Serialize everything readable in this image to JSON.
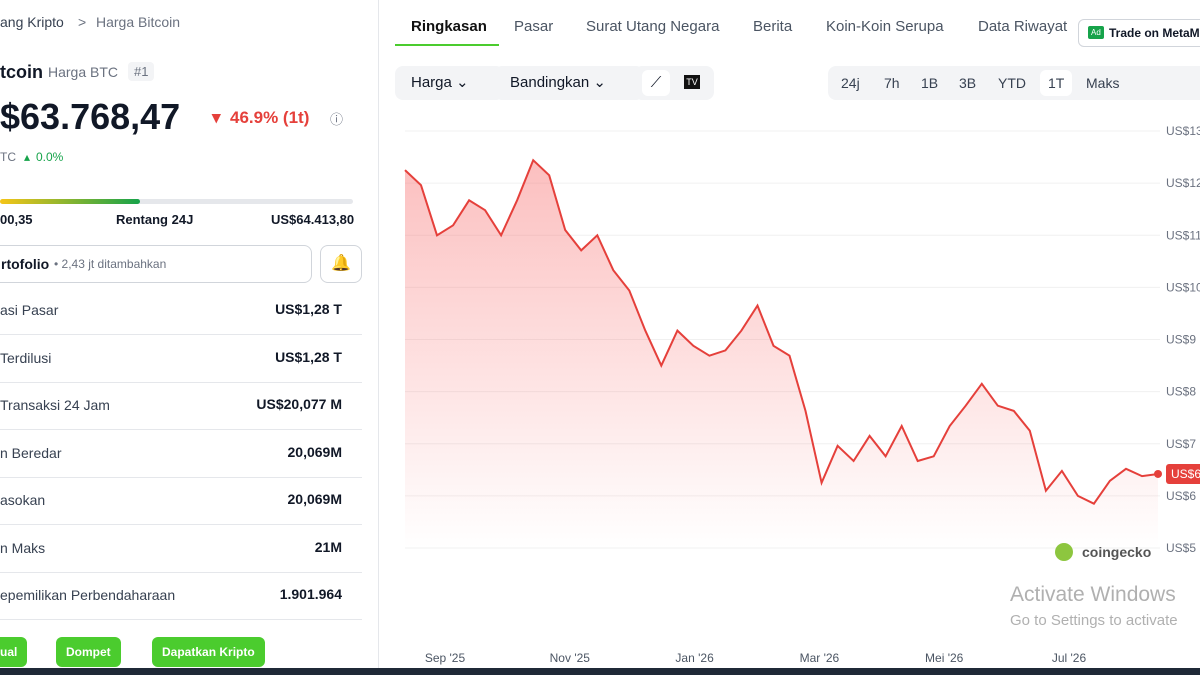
{
  "breadcrumb": [
    "ang Kripto",
    "Harga Bitcoin"
  ],
  "coin": {
    "name": "tcoin",
    "symbol": "Harga BTC",
    "rank": "#1",
    "price": "$63.768,47",
    "change": "46.9% (1t)",
    "btc_label": "TC",
    "btc_change": "0.0%",
    "range_low": "00,35",
    "range_label": "Rentang 24J",
    "range_high": "US$64.413,80"
  },
  "portfolio": {
    "label": "rtofolio",
    "added": "• 2,43 jt ditambahkan"
  },
  "stats": [
    [
      "asi Pasar",
      "US$1,28 T"
    ],
    [
      "Terdilusi",
      "US$1,28 T"
    ],
    [
      "Transaksi 24 Jam",
      "US$20,077 M"
    ],
    [
      "n Beredar",
      "20,069M"
    ],
    [
      "asokan",
      "20,069M"
    ],
    [
      "n Maks",
      "21M"
    ],
    [
      "epemilikan Perbendaharaan",
      "1.901.964"
    ]
  ],
  "buttons": [
    "ual",
    "Dompet",
    "Dapatkan Kripto"
  ],
  "tabs": [
    "Ringkasan",
    "Pasar",
    "Surat Utang Negara",
    "Berita",
    "Koin-Koin Serupa",
    "Data Riwayat"
  ],
  "ad": "Trade on MetaM",
  "toolbar": {
    "price": "Harga",
    "compare": "Bandingkan",
    "ranges": [
      "24j",
      "7h",
      "1B",
      "3B",
      "YTD",
      "1T",
      "Maks"
    ]
  },
  "watermark": "coingecko",
  "windows": {
    "title": "Activate Windows",
    "subtitle": "Go to Settings to activate"
  },
  "chart_data": {
    "type": "line",
    "color": "#e5403b",
    "current_label": "US$6",
    "values": [
      122500,
      119600,
      110000,
      111900,
      116700,
      114800,
      110000,
      116700,
      124400,
      121500,
      111000,
      107100,
      110000,
      103300,
      99400,
      91700,
      85000,
      91700,
      88800,
      86900,
      87900,
      91700,
      96500,
      88800,
      86900,
      76300,
      62500,
      69600,
      66700,
      71500,
      67600,
      73400,
      66700,
      67600,
      73400,
      77300,
      81500,
      77300,
      76300,
      72500,
      61000,
      64800,
      60000,
      58500,
      62900,
      65200,
      63800,
      64200
    ],
    "ylim": [
      50000,
      130000
    ],
    "yticks": [
      {
        "value": 130000,
        "label": "US$13"
      },
      {
        "value": 120000,
        "label": "US$12"
      },
      {
        "value": 110000,
        "label": "US$11"
      },
      {
        "value": 100000,
        "label": "US$10"
      },
      {
        "value": 90000,
        "label": "US$9"
      },
      {
        "value": 80000,
        "label": "US$8"
      },
      {
        "value": 70000,
        "label": "US$7"
      },
      {
        "value": 60000,
        "label": "US$6"
      },
      {
        "value": 50000,
        "label": "US$5"
      }
    ],
    "xticks": [
      "Sep '25",
      "Nov '25",
      "Jan '26",
      "Mar '26",
      "Mei '26",
      "Jul '26"
    ],
    "grid": true
  }
}
